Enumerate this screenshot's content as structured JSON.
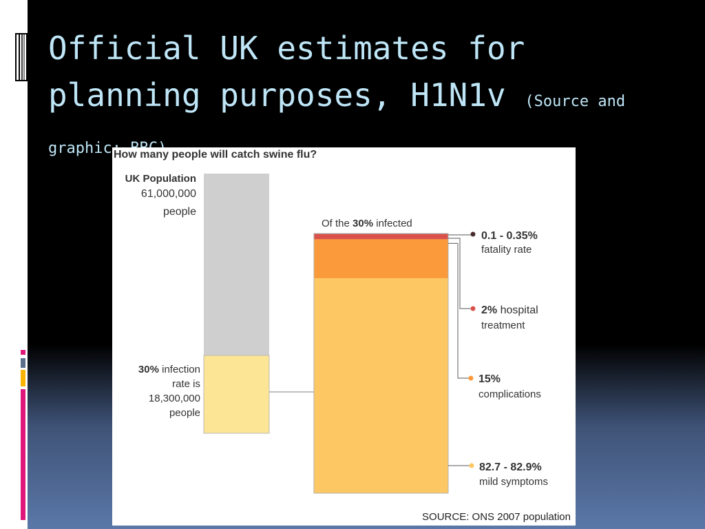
{
  "slide": {
    "title_main": "Official UK estimates for planning purposes, H1N1v",
    "title_source": "(Source and graphic: BBC)"
  },
  "chart_data": {
    "type": "bar",
    "title": "How many people will catch swine flu?",
    "population": {
      "label": "UK Population",
      "value_text": "61,000,000",
      "unit": "people",
      "value": 61000000
    },
    "infected": {
      "percent_text": "30%",
      "label_rest": "infection",
      "line2": "rate is",
      "value_text": "18,300,000",
      "unit": "people",
      "value": 18300000,
      "fraction": 0.3
    },
    "breakdown_header": {
      "prefix": "Of the",
      "bold": "30%",
      "suffix": "infected"
    },
    "segments": [
      {
        "value": "0.1 - 0.35%",
        "line2": "fatality rate",
        "low": 0.1,
        "high": 0.35,
        "color": "#8b2e34",
        "dot": "#4a2c2c"
      },
      {
        "value": "2%",
        "inline_label": "hospital",
        "line2": "treatment",
        "low": 2,
        "high": 2,
        "color": "#d9514a",
        "dot": "#d9514a"
      },
      {
        "value": "15%",
        "line2": "complications",
        "low": 15,
        "high": 15,
        "color": "#fb9a3a",
        "dot": "#fb9a3a"
      },
      {
        "value": "82.7 - 82.9%",
        "line2": "mild symptoms",
        "low": 82.7,
        "high": 82.9,
        "color": "#fdc863",
        "dot": "#fdc863"
      }
    ],
    "colors": {
      "population_bar": "#cfcfcf",
      "infected_bar": "#fde596"
    },
    "source": "SOURCE: ONS 2007 population"
  }
}
